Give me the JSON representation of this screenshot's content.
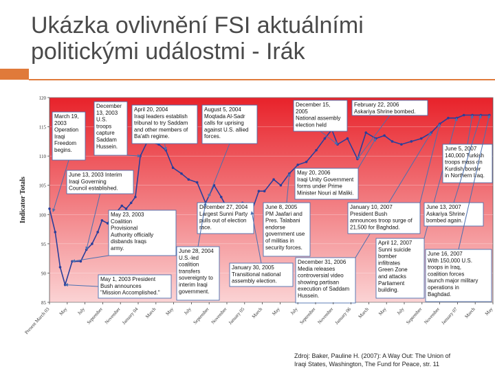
{
  "slide": {
    "title_line1": "Ukázka ovlivnění FSI aktuálními",
    "title_line2": "politickými událostmi - Irák"
  },
  "source": {
    "line1": "Zdroj: Baker, Pauline H. (2007): A Way Out: The Union of",
    "line2": "Iraqi States, Washington, The Fund for Peace, str. 11"
  },
  "colors": {
    "accent": "#e07a3a",
    "line": "#2a3e9a",
    "callout_fill": "#ffffff",
    "callout_border": "#4a6fb0",
    "bg_top": "#e8222a",
    "bg_bottom": "#fbd3d4"
  },
  "chart_data": {
    "type": "line",
    "ylabel": "Indicator Totals",
    "ylim": [
      85,
      120
    ],
    "yticks": [
      85,
      90,
      95,
      100,
      105,
      110,
      115,
      120
    ],
    "xticks": [
      "Present March 03",
      "May",
      "July",
      "September",
      "November",
      "January 04",
      "March",
      "May",
      "July",
      "September",
      "November",
      "January 05",
      "March",
      "May",
      "July",
      "September",
      "November",
      "January 06",
      "March",
      "May",
      "July",
      "September",
      "November",
      "January 07",
      "March",
      "May"
    ],
    "series": [
      {
        "values": [
          [
            0,
            101
          ],
          [
            0.8,
            97
          ],
          [
            1.5,
            91
          ],
          [
            2.2,
            88
          ],
          [
            3.2,
            92
          ],
          [
            4.4,
            92
          ],
          [
            5.2,
            94
          ],
          [
            6,
            95
          ],
          [
            6.8,
            97
          ],
          [
            7.4,
            99
          ],
          [
            8.2,
            98.5
          ],
          [
            8.9,
            100
          ],
          [
            9.5,
            100.5
          ],
          [
            10.2,
            101.5
          ],
          [
            10.8,
            101
          ],
          [
            11.5,
            102
          ],
          [
            12.1,
            103
          ],
          [
            12.8,
            110
          ],
          [
            13.8,
            112.5
          ],
          [
            15.4,
            112
          ],
          [
            16.4,
            111
          ],
          [
            17.4,
            108
          ],
          [
            18.6,
            107
          ],
          [
            19.6,
            106
          ],
          [
            20.8,
            105.5
          ],
          [
            22,
            102
          ],
          [
            23.2,
            105
          ],
          [
            24.2,
            103
          ],
          [
            25.3,
            100.5
          ],
          [
            26.3,
            100
          ],
          [
            27.2,
            102
          ],
          [
            28.5,
            100.5
          ],
          [
            29.5,
            104
          ],
          [
            30.3,
            104
          ],
          [
            31.6,
            106
          ],
          [
            32.6,
            105
          ],
          [
            33.8,
            107
          ],
          [
            35,
            108.5
          ],
          [
            36.2,
            109
          ],
          [
            37.6,
            111
          ],
          [
            38.8,
            113
          ],
          [
            39.8,
            114.5
          ],
          [
            40.6,
            112
          ],
          [
            42,
            113
          ],
          [
            43.4,
            109.5
          ],
          [
            44.6,
            114
          ],
          [
            46,
            113
          ],
          [
            47.2,
            113.5
          ],
          [
            48.3,
            112.5
          ],
          [
            49.6,
            112
          ],
          [
            51,
            112.5
          ],
          [
            52.4,
            113
          ],
          [
            53.8,
            114
          ],
          [
            55,
            115.5
          ],
          [
            56.2,
            116.5
          ],
          [
            57.4,
            116.5
          ],
          [
            58.4,
            117
          ],
          [
            59.6,
            117
          ],
          [
            60.8,
            117
          ],
          [
            62,
            117
          ]
        ]
      }
    ],
    "annotations": [
      {
        "lines": [
          "March 19,",
          "2003",
          "Operation",
          "Iraqi",
          "Freedom",
          "begins."
        ],
        "x": 0.5,
        "y": 100.5
      },
      {
        "lines": [
          "December",
          "13, 2003",
          "U.S.",
          "troops",
          "capture",
          "Saddam",
          "Hussein."
        ],
        "x": 12.8,
        "y": 110
      },
      {
        "lines": [
          "April 20, 2004",
          "Iraqi leaders establish",
          "tribunal to try Saddam",
          "and other members of",
          "Ba'ath regime."
        ],
        "x": 16.4,
        "y": 111
      },
      {
        "lines": [
          "August 5, 2004",
          "Moqtada Al-Sadr",
          "calls for uprising",
          "against U.S. allied",
          "forces."
        ],
        "x": 22.4,
        "y": 103
      },
      {
        "lines": [
          "June 13, 2003 Interim",
          "Iraqi Governing",
          "Council established."
        ],
        "x": 5.2,
        "y": 94
      },
      {
        "lines": [
          "May 23, 2003",
          "Coalition",
          "Provisional",
          "Authority officially",
          "disbands Iraqs",
          "army."
        ],
        "x": 3.2,
        "y": 92
      },
      {
        "lines": [
          "May 1, 2003 President",
          "Bush announces",
          "\"Mission Accomplished.\""
        ],
        "x": 2.2,
        "y": 88
      },
      {
        "lines": [
          "December 27, 2004",
          "Largest Sunni Party",
          "pulls out of election",
          "race."
        ],
        "x": 26.3,
        "y": 100
      },
      {
        "lines": [
          "June 28, 2004",
          "U.S.-led",
          "coalition",
          "transfers",
          "sovereignty to",
          "interim Iraqi",
          "government."
        ],
        "x": 22,
        "y": 102
      },
      {
        "lines": [
          "January 30, 2005",
          "Transitional national",
          "assembly election."
        ],
        "x": 28.5,
        "y": 100.5
      },
      {
        "lines": [
          "June 8, 2005",
          "PM Jaafari and",
          "Pres. Talabani",
          "endorse",
          "government use",
          "of militias in",
          "security forces."
        ],
        "x": 33.8,
        "y": 107
      },
      {
        "lines": [
          "December 15,",
          "2005",
          "National assembly",
          "election held"
        ],
        "x": 40.6,
        "y": 112
      },
      {
        "lines": [
          "February 22, 2006",
          "Askariya Shrine bombed."
        ],
        "x": 43.4,
        "y": 109.5
      },
      {
        "lines": [
          "May 20, 2006",
          "Iraqi Unity Government",
          "forms under Prime",
          "Minister Nouri al Maliki."
        ],
        "x": 46,
        "y": 113
      },
      {
        "lines": [
          "December 31, 2006",
          "Media releases",
          "controversial video",
          "showing partisan",
          "execution of Saddam",
          "Hussein."
        ],
        "x": 53.8,
        "y": 114
      },
      {
        "lines": [
          "January 10, 2007",
          "President Bush",
          "announces troop surge of",
          "21,500 for Baghdad."
        ],
        "x": 55,
        "y": 115.5
      },
      {
        "lines": [
          "April 12, 2007",
          "Sunni suicide",
          "bomber",
          "infiltrates",
          "Green Zone",
          "and attacks",
          "Parliament",
          "building."
        ],
        "x": 57.4,
        "y": 116.5
      },
      {
        "lines": [
          "June 5, 2007",
          "140,000 Turkish",
          "troops mass on",
          "Kurdish border",
          "in Northern Iraq."
        ],
        "x": 59.6,
        "y": 117
      },
      {
        "lines": [
          "June 13, 2007",
          "Askariya Shrine",
          "bombed again."
        ],
        "x": 60.8,
        "y": 117
      },
      {
        "lines": [
          "June 16, 2007",
          "With 150,000 U.S.",
          "troops in Iraq,",
          "coalition forces",
          "launch major military",
          "operations in",
          "Baghdad."
        ],
        "x": 62,
        "y": 117
      }
    ]
  }
}
